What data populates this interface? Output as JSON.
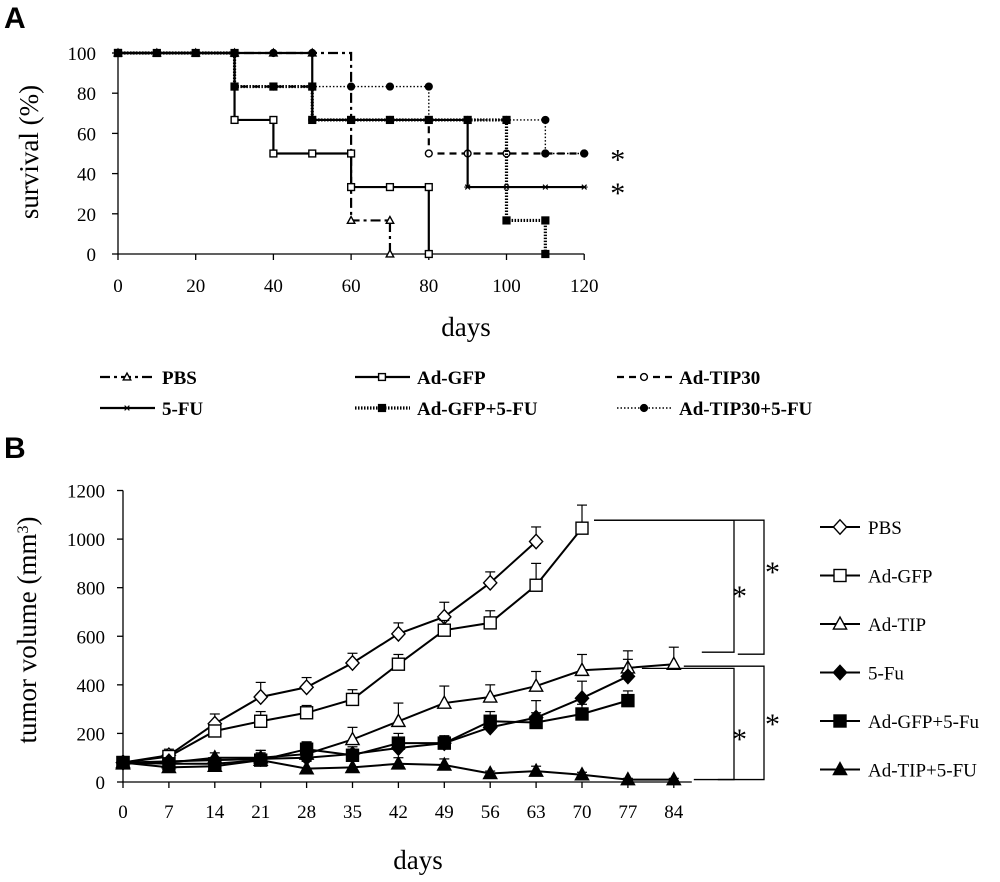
{
  "chart_data": [
    {
      "panel": "A",
      "type": "line",
      "step": true,
      "xlabel": "days",
      "ylabel": "survival (%)",
      "xlim": [
        0,
        120
      ],
      "ylim": [
        0,
        100
      ],
      "xticks": [
        0,
        20,
        40,
        60,
        80,
        100,
        120
      ],
      "yticks": [
        0,
        20,
        40,
        60,
        80,
        100
      ],
      "grid": false,
      "legend_position": "bottom",
      "series": [
        {
          "name": "PBS",
          "line": "dashdot",
          "marker": "triangle-open",
          "points": [
            [
              0,
              100
            ],
            [
              10,
              100
            ],
            [
              20,
              100
            ],
            [
              30,
              100
            ],
            [
              40,
              100
            ],
            [
              50,
              100
            ],
            [
              60,
              16.7
            ],
            [
              70,
              16.7
            ],
            [
              70,
              0
            ]
          ]
        },
        {
          "name": "Ad-GFP",
          "line": "solid",
          "marker": "square-open",
          "points": [
            [
              0,
              100
            ],
            [
              30,
              66.7
            ],
            [
              40,
              66.7
            ],
            [
              40,
              50
            ],
            [
              50,
              50
            ],
            [
              60,
              50
            ],
            [
              60,
              33.3
            ],
            [
              70,
              33.3
            ],
            [
              80,
              33.3
            ],
            [
              80,
              0
            ]
          ]
        },
        {
          "name": "Ad-TIP30",
          "line": "dashed",
          "marker": "circle-open",
          "points": [
            [
              0,
              100
            ],
            [
              30,
              83.3
            ],
            [
              40,
              83.3
            ],
            [
              50,
              83.3
            ],
            [
              50,
              66.7
            ],
            [
              60,
              66.7
            ],
            [
              70,
              66.7
            ],
            [
              80,
              66.7
            ],
            [
              80,
              50
            ],
            [
              90,
              50
            ],
            [
              100,
              50
            ],
            [
              110,
              50
            ],
            [
              120,
              50
            ]
          ]
        },
        {
          "name": "5-FU",
          "line": "solid",
          "marker": "star",
          "points": [
            [
              0,
              100
            ],
            [
              30,
              100
            ],
            [
              40,
              100
            ],
            [
              50,
              100
            ],
            [
              50,
              66.7
            ],
            [
              60,
              66.7
            ],
            [
              70,
              66.7
            ],
            [
              80,
              66.7
            ],
            [
              90,
              66.7
            ],
            [
              90,
              33.3
            ],
            [
              100,
              33.3
            ],
            [
              110,
              33.3
            ],
            [
              120,
              33.3
            ]
          ]
        },
        {
          "name": "Ad-GFP+5-FU",
          "line": "dotted-thick",
          "marker": "square-filled",
          "points": [
            [
              0,
              100
            ],
            [
              10,
              100
            ],
            [
              20,
              100
            ],
            [
              30,
              100
            ],
            [
              30,
              83.3
            ],
            [
              40,
              83.3
            ],
            [
              50,
              83.3
            ],
            [
              50,
              66.7
            ],
            [
              60,
              66.7
            ],
            [
              70,
              66.7
            ],
            [
              80,
              66.7
            ],
            [
              90,
              66.7
            ],
            [
              100,
              66.7
            ],
            [
              100,
              16.7
            ],
            [
              110,
              16.7
            ],
            [
              110,
              0
            ]
          ]
        },
        {
          "name": "Ad-TIP30+5-FU",
          "line": "dotted",
          "marker": "circle-filled",
          "points": [
            [
              0,
              100
            ],
            [
              30,
              100
            ],
            [
              40,
              100
            ],
            [
              50,
              100
            ],
            [
              50,
              83.3
            ],
            [
              60,
              83.3
            ],
            [
              70,
              83.3
            ],
            [
              80,
              83.3
            ],
            [
              80,
              66.7
            ],
            [
              90,
              66.7
            ],
            [
              100,
              66.7
            ],
            [
              110,
              66.7
            ],
            [
              110,
              50
            ],
            [
              120,
              50
            ]
          ]
        }
      ],
      "annotations": [
        {
          "text": "*",
          "series": "Ad-TIP30+5-FU"
        },
        {
          "text": "*",
          "series": "5-FU"
        }
      ]
    },
    {
      "panel": "B",
      "type": "line",
      "xlabel": "days",
      "ylabel": "tumor volume (mm",
      "ylabel_sup": "3",
      "ylabel_close": ")",
      "categories": [
        0,
        7,
        14,
        21,
        28,
        35,
        42,
        49,
        56,
        63,
        70,
        77,
        84
      ],
      "ylim": [
        0,
        1200
      ],
      "yticks": [
        0,
        200,
        400,
        600,
        800,
        1000,
        1200
      ],
      "grid": false,
      "legend_position": "right",
      "series": [
        {
          "name": "PBS",
          "marker": "diamond-open",
          "values": [
            80,
            110,
            240,
            350,
            390,
            490,
            610,
            680,
            820,
            990,
            null,
            null,
            null
          ],
          "errors": [
            0,
            25,
            40,
            60,
            40,
            40,
            45,
            60,
            45,
            60,
            null,
            null,
            null
          ]
        },
        {
          "name": "Ad-GFP",
          "marker": "square-open",
          "values": [
            80,
            105,
            210,
            250,
            285,
            340,
            485,
            625,
            655,
            810,
            1045,
            null,
            null
          ],
          "errors": [
            0,
            15,
            20,
            40,
            30,
            40,
            40,
            40,
            50,
            90,
            95,
            null,
            null
          ]
        },
        {
          "name": "Ad-TIP",
          "marker": "triangle-open",
          "values": [
            75,
            80,
            100,
            100,
            115,
            175,
            250,
            325,
            350,
            395,
            460,
            470,
            485
          ],
          "errors": [
            0,
            10,
            20,
            30,
            50,
            50,
            75,
            70,
            50,
            60,
            65,
            70,
            70
          ]
        },
        {
          "name": "5-Fu",
          "marker": "diamond-filled",
          "values": [
            80,
            85,
            90,
            95,
            100,
            115,
            140,
            160,
            225,
            265,
            345,
            435,
            null
          ],
          "errors": [
            0,
            10,
            10,
            20,
            20,
            20,
            30,
            30,
            40,
            70,
            70,
            70,
            null
          ]
        },
        {
          "name": "Ad-GFP+5-Fu",
          "marker": "square-filled",
          "values": [
            80,
            75,
            75,
            90,
            135,
            110,
            160,
            160,
            250,
            245,
            280,
            335,
            null
          ],
          "errors": [
            0,
            10,
            10,
            40,
            30,
            35,
            40,
            30,
            40,
            40,
            40,
            40,
            null
          ]
        },
        {
          "name": "Ad-TIP+5-FU",
          "marker": "triangle-filled",
          "values": [
            80,
            60,
            65,
            90,
            55,
            60,
            75,
            70,
            35,
            45,
            30,
            10,
            10
          ],
          "errors": [
            0,
            10,
            20,
            30,
            30,
            30,
            25,
            25,
            10,
            20,
            10,
            5,
            5
          ]
        }
      ],
      "annotations": [
        {
          "text": "*",
          "between": [
            "Ad-GFP",
            "Ad-TIP"
          ]
        },
        {
          "text": "*",
          "between": [
            "Ad-GFP",
            "PBS"
          ]
        },
        {
          "text": "*",
          "between": [
            "Ad-TIP",
            "Ad-GFP+5-Fu"
          ]
        },
        {
          "text": "*",
          "between": [
            "Ad-TIP",
            "Ad-TIP+5-FU"
          ]
        }
      ]
    }
  ]
}
